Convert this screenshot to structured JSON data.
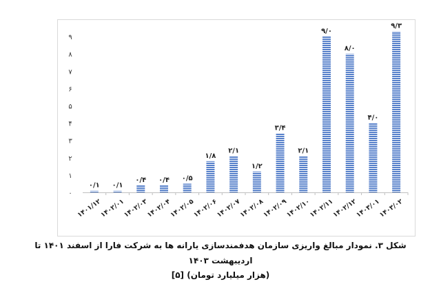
{
  "chart_data": {
    "type": "bar",
    "categories": [
      "۱۴۰۱/۱۲",
      "۱۴۰۲/۰۱",
      "۱۴۰۲/۰۳",
      "۱۴۰۲/۰۴",
      "۱۴۰۲/۰۵",
      "۱۴۰۲/۰۶",
      "۱۴۰۲/۰۷",
      "۱۴۰۲/۰۸",
      "۱۴۰۲/۰۹",
      "۱۴۰۲/۱۰",
      "۱۴۰۲/۱۱",
      "۱۴۰۲/۱۲",
      "۱۴۰۳/۰۱",
      "۱۴۰۳/۰۲"
    ],
    "values": [
      0.1,
      0.1,
      0.4,
      0.4,
      0.5,
      1.8,
      2.1,
      1.2,
      3.4,
      2.1,
      9.0,
      8.0,
      4.0,
      9.3
    ],
    "data_labels": [
      "۰/۱",
      "۰/۱",
      "۰/۴",
      "۰/۴",
      "۰/۵",
      "۱/۸",
      "۲/۱",
      "۱/۲",
      "۳/۴",
      "۲/۱",
      "۹/۰",
      "۸/۰",
      "۴/۰",
      "۹/۳"
    ],
    "y_ticks": [
      0,
      1,
      2,
      3,
      4,
      5,
      6,
      7,
      8,
      9
    ],
    "y_tick_labels": [
      "۰",
      "۱",
      "۲",
      "۳",
      "۴",
      "۵",
      "۶",
      "۷",
      "۸",
      "۹"
    ],
    "ylim": [
      0,
      9.4
    ],
    "grid": false,
    "bar_color": "#4472c4",
    "title": "",
    "xlabel": "",
    "ylabel": ""
  },
  "caption": {
    "line1": "شکل ۳. نمودار مبالغ واریزی سازمان هدفمندسازی یارانه ها به شرکت فارا از اسفند ۱۴۰۱ تا اردیبهشت ۱۴۰۳",
    "line2": "(هزار میلیارد تومان) [۵]"
  }
}
